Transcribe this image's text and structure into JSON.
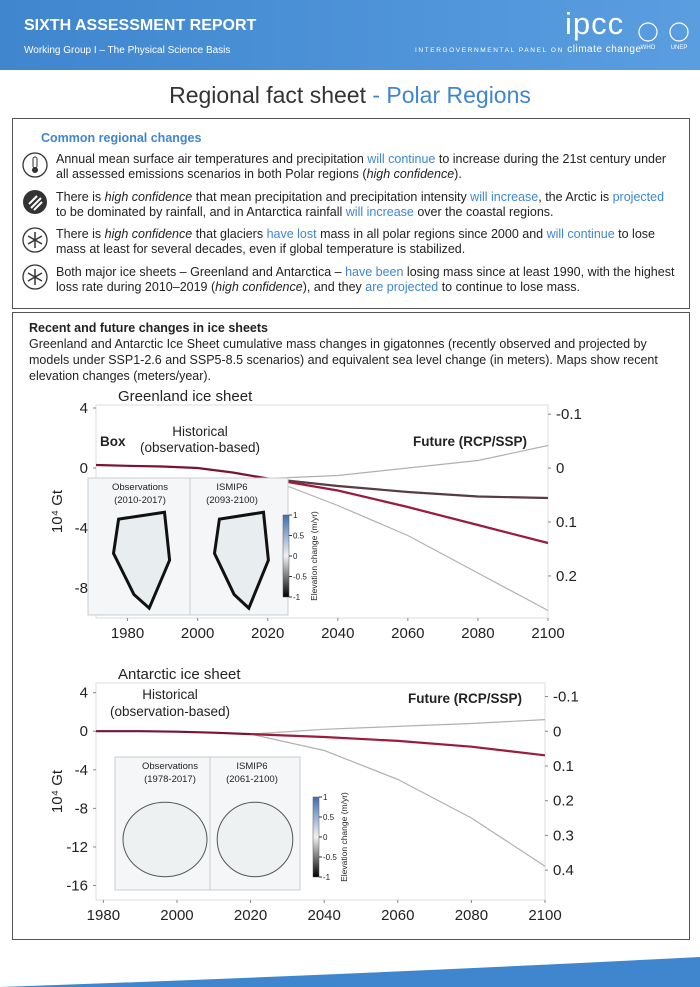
{
  "header": {
    "title": "SIXTH ASSESSMENT REPORT",
    "subtitle": "Working Group I – The Physical Science Basis",
    "logo": "ipcc",
    "org_name": "INTERGOVERNMENTAL PANEL ON",
    "org_tagline": "climate change",
    "partners": [
      "WHO",
      "UNEP"
    ]
  },
  "page_title": {
    "main": "Regional fact sheet",
    "highlight": "- Polar Regions"
  },
  "common": {
    "heading": "Common regional changes",
    "items": [
      {
        "segments": [
          {
            "text": "Annual mean surface air temperatures and precipitation ",
            "style": "plain"
          },
          {
            "text": "will continue",
            "style": "blue"
          },
          {
            "text": " to increase during the 21st century under all assessed emissions scenarios in both Polar regions (",
            "style": "plain"
          },
          {
            "text": "high confidence",
            "style": "italic"
          },
          {
            "text": ").",
            "style": "plain"
          }
        ]
      },
      {
        "segments": [
          {
            "text": "There is ",
            "style": "plain"
          },
          {
            "text": "high confidence",
            "style": "italic"
          },
          {
            "text": " that mean precipitation and precipitation intensity ",
            "style": "plain"
          },
          {
            "text": "will increase",
            "style": "blue"
          },
          {
            "text": ", the Arctic is ",
            "style": "plain"
          },
          {
            "text": "projected",
            "style": "blue"
          },
          {
            "text": " to be dominated by rainfall, and in Antarctica rainfall ",
            "style": "plain"
          },
          {
            "text": "will increase",
            "style": "blue"
          },
          {
            "text": " over the coastal regions.",
            "style": "plain"
          }
        ]
      },
      {
        "segments": [
          {
            "text": "There is ",
            "style": "plain"
          },
          {
            "text": "high confidence",
            "style": "italic"
          },
          {
            "text": " that glaciers ",
            "style": "plain"
          },
          {
            "text": "have lost",
            "style": "blue"
          },
          {
            "text": " mass in all polar regions since 2000 and ",
            "style": "plain"
          },
          {
            "text": "will continue",
            "style": "blue"
          },
          {
            "text": " to lose mass at least for several decades, even if global temperature is stabilized.",
            "style": "plain"
          }
        ]
      },
      {
        "segments": [
          {
            "text": "Both major ice sheets – Greenland and Antarctica – ",
            "style": "plain"
          },
          {
            "text": "have been",
            "style": "blue"
          },
          {
            "text": " losing mass since at least 1990, with the highest loss rate during 2010–2019 (",
            "style": "plain"
          },
          {
            "text": "high confidence",
            "style": "italic"
          },
          {
            "text": "), and they ",
            "style": "plain"
          },
          {
            "text": "are projected",
            "style": "blue"
          },
          {
            "text": " to continue to lose mass.",
            "style": "plain"
          }
        ]
      }
    ]
  },
  "ice": {
    "heading": "Recent and future changes in ice sheets",
    "description": "Greenland and Antarctic Ice Sheet cumulative mass changes in gigatonnes (recently observed and projected by models under SSP1-2.6 and SSP5-8.5 scenarios) and equivalent sea level change (in meters). Maps show recent elevation changes (meters/year)."
  },
  "chart_data": [
    {
      "type": "line",
      "title": "Greenland ice sheet",
      "ylabel": "10⁴ Gt",
      "xlim": [
        1971,
        2100
      ],
      "xticks": [
        1980,
        2000,
        2020,
        2040,
        2060,
        2080,
        2100
      ],
      "ylim": [
        -10,
        4.2
      ],
      "yticks": [
        4,
        0,
        -4,
        -8
      ],
      "y2lim": [
        -0.117,
        0.278
      ],
      "y2_inverted": true,
      "y2ticks": [
        -0.1,
        0,
        0.1,
        0.2
      ],
      "annotations": [
        "Box",
        "Historical",
        "(observation-based)",
        "Future (RCP/SSP)"
      ],
      "series": [
        {
          "color": "#b0b0b0",
          "x": [
            2020,
            2040,
            2060,
            2080,
            2100
          ],
          "values": [
            -0.7,
            -0.5,
            0,
            0.5,
            1.5
          ]
        },
        {
          "color": "#b0b0b0",
          "x": [
            2020,
            2040,
            2060,
            2080,
            2100
          ],
          "values": [
            -0.7,
            -2.5,
            -4.5,
            -7,
            -9.5
          ]
        },
        {
          "color": "#5a3a45",
          "x": [
            2020,
            2040,
            2060,
            2080,
            2100
          ],
          "values": [
            -0.7,
            -1.2,
            -1.6,
            -1.9,
            -2
          ]
        },
        {
          "color": "#9b1b3e",
          "x": [
            2020,
            2040,
            2060,
            2080,
            2100
          ],
          "values": [
            -0.7,
            -1.5,
            -2.6,
            -3.8,
            -5
          ]
        },
        {
          "color": "#7a1230",
          "x": [
            1971,
            1980,
            1990,
            2000,
            2010,
            2020
          ],
          "values": [
            0.2,
            0.15,
            0.1,
            0,
            -0.3,
            -0.7
          ]
        }
      ],
      "maps": [
        {
          "lines": [
            "Observations",
            "(2010-2017)"
          ]
        },
        {
          "lines": [
            "ISMIP6",
            "(2093-2100)"
          ]
        }
      ],
      "colorbar": {
        "label": "Elevation change (m/yr)",
        "clim": [
          -1,
          1
        ],
        "ticks": [
          1,
          0.5,
          0,
          -0.5,
          -1
        ]
      }
    },
    {
      "type": "line",
      "title": "Antarctic ice sheet",
      "ylabel": "10⁴ Gt",
      "xlim": [
        1978,
        2100
      ],
      "xticks": [
        1980,
        2000,
        2020,
        2040,
        2060,
        2080,
        2100
      ],
      "ylim": [
        -17.5,
        5
      ],
      "yticks": [
        4,
        0,
        -4,
        -8,
        -12,
        -16
      ],
      "y2lim": [
        -0.139,
        0.486
      ],
      "y2_inverted": true,
      "y2ticks": [
        -0.1,
        0,
        0.1,
        0.2,
        0.3,
        0.4
      ],
      "annotations": [
        "Historical",
        "(observation-based)",
        "Future (RCP/SSP)"
      ],
      "series": [
        {
          "color": "#b0b0b0",
          "x": [
            2020,
            2040,
            2060,
            2080,
            2100
          ],
          "values": [
            -0.3,
            0.2,
            0.5,
            0.8,
            1.2
          ]
        },
        {
          "color": "#b0b0b0",
          "x": [
            2020,
            2040,
            2060,
            2080,
            2100
          ],
          "values": [
            -0.3,
            -2,
            -5,
            -9,
            -14
          ]
        },
        {
          "color": "#9b1b3e",
          "x": [
            2020,
            2040,
            2060,
            2080,
            2100
          ],
          "values": [
            -0.3,
            -0.6,
            -1,
            -1.6,
            -2.5
          ]
        },
        {
          "color": "#7a1230",
          "x": [
            1978,
            1990,
            2000,
            2010,
            2020
          ],
          "values": [
            0,
            0,
            -0.05,
            -0.15,
            -0.3
          ]
        }
      ],
      "maps": [
        {
          "lines": [
            "Observations",
            "(1978-2017)"
          ]
        },
        {
          "lines": [
            "ISMIP6",
            "(2061-2100)"
          ]
        }
      ],
      "colorbar": {
        "label": "Elevation change (m/yr)",
        "clim": [
          -1,
          1
        ],
        "ticks": [
          1,
          0.5,
          0,
          -0.5,
          -1
        ]
      }
    }
  ]
}
